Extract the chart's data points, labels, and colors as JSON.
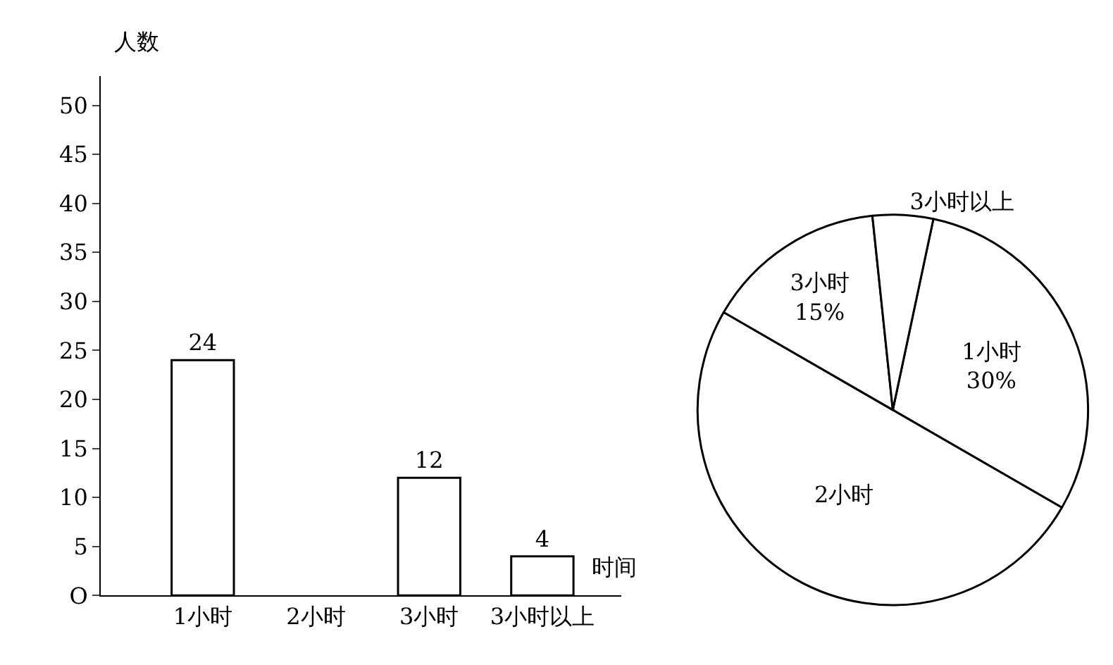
{
  "chart_data": [
    {
      "type": "bar",
      "xlabel": "时间",
      "ylabel": "人数",
      "categories": [
        "1小时",
        "2小时",
        "3小时",
        "3小时以上"
      ],
      "values": [
        24,
        null,
        12,
        4
      ],
      "color": "#ffffff",
      "data_labels": true,
      "ylim": [
        0,
        53
      ],
      "yticks": [
        {
          "value": 0,
          "label": "O"
        },
        5,
        10,
        15,
        20,
        25,
        30,
        35,
        40,
        45,
        50
      ]
    },
    {
      "type": "pie",
      "categories": [
        "1小时",
        "2小时",
        "3小时",
        "3小时以上"
      ],
      "values": [
        30,
        50,
        15,
        5
      ],
      "value_labels": [
        "30%",
        null,
        "15%",
        null
      ],
      "colors": [
        "#ffffff",
        "#ffffff",
        "#ffffff",
        "#ffffff"
      ]
    }
  ]
}
